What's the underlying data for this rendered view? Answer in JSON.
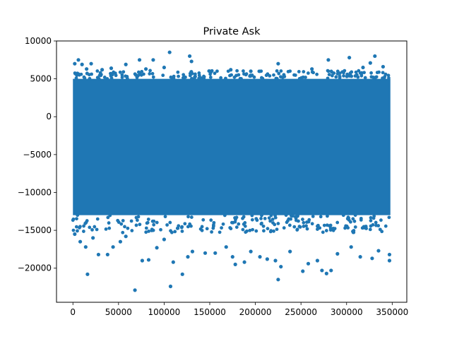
{
  "chart_data": {
    "type": "scatter",
    "title": "Private Ask",
    "xlabel": "",
    "ylabel": "",
    "xlim": [
      -18000,
      366000
    ],
    "ylim": [
      -24500,
      10000
    ],
    "x_ticks": [
      0,
      50000,
      100000,
      150000,
      200000,
      250000,
      300000,
      350000
    ],
    "y_ticks": [
      10000,
      5000,
      0,
      -5000,
      -10000,
      -15000,
      -20000
    ],
    "grid": false,
    "legend": "none",
    "marker_color": "#1f77b4",
    "dense_band": {
      "x_range": [
        0,
        348000
      ],
      "y_range": [
        -13000,
        5000
      ]
    },
    "series": [
      {
        "points": [
          [
            2000,
            7000
          ],
          [
            6000,
            7500
          ],
          [
            10000,
            6900
          ],
          [
            15000,
            6300
          ],
          [
            20000,
            7000
          ],
          [
            32000,
            6200
          ],
          [
            42000,
            6400
          ],
          [
            58000,
            6900
          ],
          [
            73000,
            7500
          ],
          [
            80000,
            6300
          ],
          [
            88000,
            7500
          ],
          [
            100000,
            6500
          ],
          [
            106000,
            8500
          ],
          [
            128000,
            8000
          ],
          [
            130000,
            7300
          ],
          [
            150000,
            6000
          ],
          [
            173000,
            6200
          ],
          [
            195000,
            6000
          ],
          [
            225000,
            7000
          ],
          [
            262000,
            6300
          ],
          [
            280000,
            7500
          ],
          [
            303000,
            7800
          ],
          [
            318000,
            6500
          ],
          [
            326000,
            7100
          ],
          [
            331000,
            8000
          ],
          [
            340000,
            6600
          ],
          [
            2000,
            -15500
          ],
          [
            8000,
            -16500
          ],
          [
            14000,
            -17200
          ],
          [
            16000,
            -20800
          ],
          [
            22000,
            -16000
          ],
          [
            28000,
            -18200
          ],
          [
            38000,
            -18200
          ],
          [
            44000,
            -17200
          ],
          [
            52000,
            -16500
          ],
          [
            58000,
            -15800
          ],
          [
            68000,
            -22900
          ],
          [
            76000,
            -19000
          ],
          [
            83000,
            -18900
          ],
          [
            92000,
            -17300
          ],
          [
            100000,
            -16200
          ],
          [
            107000,
            -22400
          ],
          [
            110000,
            -19200
          ],
          [
            120000,
            -20800
          ],
          [
            126000,
            -18500
          ],
          [
            131000,
            -17800
          ],
          [
            145000,
            -18000
          ],
          [
            156000,
            -18000
          ],
          [
            168000,
            -17200
          ],
          [
            175000,
            -18500
          ],
          [
            178000,
            -19500
          ],
          [
            188000,
            -19200
          ],
          [
            195000,
            -17800
          ],
          [
            205000,
            -18500
          ],
          [
            213000,
            -18800
          ],
          [
            222000,
            -19000
          ],
          [
            225000,
            -21500
          ],
          [
            228000,
            -19800
          ],
          [
            238000,
            -17800
          ],
          [
            252000,
            -20400
          ],
          [
            258000,
            -19400
          ],
          [
            268000,
            -19000
          ],
          [
            273000,
            -20300
          ],
          [
            278000,
            -20700
          ],
          [
            283000,
            -20300
          ],
          [
            290000,
            -18100
          ],
          [
            305000,
            -17200
          ],
          [
            315000,
            -18500
          ],
          [
            328000,
            -18700
          ],
          [
            335000,
            -17700
          ],
          [
            347000,
            -18200
          ],
          [
            347000,
            -19000
          ]
        ]
      }
    ]
  }
}
